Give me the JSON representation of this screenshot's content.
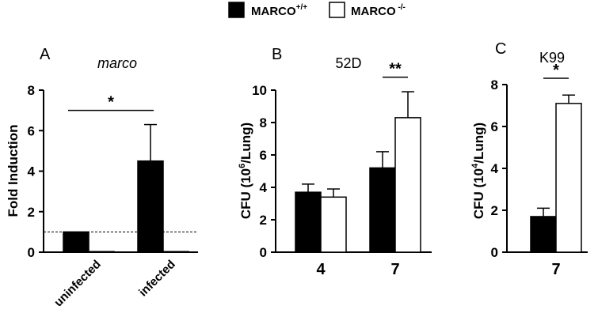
{
  "legend": {
    "items": [
      {
        "label": "MARCO",
        "sup": "+/+",
        "fill": "#000000"
      },
      {
        "label": "MARCO",
        "sup": " -/-",
        "fill": "#ffffff"
      }
    ],
    "placement": "top-center"
  },
  "chart_data": [
    {
      "type": "bar",
      "panel": "A",
      "title": "marco",
      "title_style": "italic",
      "ylabel": "Fold Induction",
      "ylim": [
        0,
        8
      ],
      "yticks": [
        0,
        2,
        4,
        6,
        8
      ],
      "categories": [
        "uninfected",
        "infected"
      ],
      "series": [
        {
          "name": "MARCO+/+",
          "color": "#000000",
          "values": [
            1.0,
            4.5
          ],
          "errors": [
            0,
            1.8
          ]
        },
        {
          "name": "MARCO-/-",
          "color": "#ffffff",
          "values": [
            0.03,
            0.03
          ],
          "errors": [
            0,
            0
          ]
        }
      ],
      "reference_line": {
        "y": 1.0,
        "style": "dashed"
      },
      "significance": [
        {
          "label": "*",
          "from_category": 0,
          "to_category": 1,
          "y": 7.0
        }
      ]
    },
    {
      "type": "bar",
      "panel": "B",
      "title": "52D",
      "ylabel": "CFU (10",
      "ylabel_sup": "6",
      "ylabel_tail": "/Lung)",
      "ylim": [
        0,
        10
      ],
      "yticks": [
        0,
        2,
        4,
        6,
        8,
        10
      ],
      "categories": [
        "4",
        "7"
      ],
      "series": [
        {
          "name": "MARCO+/+",
          "color": "#000000",
          "values": [
            3.7,
            5.2
          ],
          "errors": [
            0.5,
            1.0
          ]
        },
        {
          "name": "MARCO-/-",
          "color": "#ffffff",
          "values": [
            3.4,
            8.3
          ],
          "errors": [
            0.5,
            1.6
          ]
        }
      ],
      "significance": [
        {
          "label": "**",
          "category": 1,
          "y": 10.8
        }
      ]
    },
    {
      "type": "bar",
      "panel": "C",
      "title": "K99",
      "ylabel": "CFU (10",
      "ylabel_sup": "4",
      "ylabel_tail": "/Lung)",
      "ylim": [
        0,
        8
      ],
      "yticks": [
        0,
        2,
        4,
        6,
        8
      ],
      "categories": [
        "7"
      ],
      "series": [
        {
          "name": "MARCO+/+",
          "color": "#000000",
          "values": [
            1.7
          ],
          "errors": [
            0.4
          ]
        },
        {
          "name": "MARCO-/-",
          "color": "#ffffff",
          "values": [
            7.1
          ],
          "errors": [
            0.4
          ]
        }
      ],
      "significance": [
        {
          "label": "*",
          "category": 0,
          "y": 8.3
        }
      ]
    }
  ]
}
